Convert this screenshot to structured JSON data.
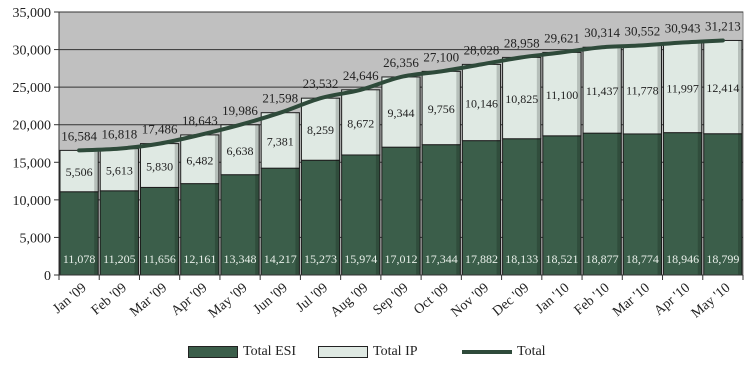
{
  "chart_data": {
    "type": "bar",
    "stacked": true,
    "categories": [
      "Jan '09",
      "Feb '09",
      "Mar '09",
      "Apr '09",
      "May '09",
      "Jun '09",
      "Jul '09",
      "Aug '09",
      "Sep '09",
      "Oct '09",
      "Nov '09",
      "Dec '09",
      "Jan '10",
      "Feb '10",
      "Mar '10",
      "Apr '10",
      "May '10"
    ],
    "series": [
      {
        "name": "Total ESI",
        "kind": "bar",
        "color": "#3b5e4a",
        "values": [
          11078,
          11205,
          11656,
          12161,
          13348,
          14217,
          15273,
          15974,
          17012,
          17344,
          17882,
          18133,
          18521,
          18877,
          18774,
          18946,
          18799
        ]
      },
      {
        "name": "Total IP",
        "kind": "bar",
        "color": "#dfe9e3",
        "values": [
          5506,
          5613,
          5830,
          6482,
          6638,
          7381,
          8259,
          8672,
          9344,
          9756,
          10146,
          10825,
          11100,
          11437,
          11778,
          11997,
          12414
        ]
      },
      {
        "name": "Total",
        "kind": "line",
        "color": "#2e4a3a",
        "values": [
          16584,
          16818,
          17486,
          18643,
          19986,
          21598,
          23532,
          24646,
          26356,
          27100,
          28028,
          28958,
          29621,
          30314,
          30552,
          30943,
          31213
        ]
      }
    ],
    "esi_labels": [
      "11,078",
      "11,205",
      "11,656",
      "12,161",
      "13,348",
      "14,217",
      "15,273",
      "15,974",
      "17,012",
      "17,344",
      "17,882",
      "18,133",
      "18,521",
      "18,877",
      "18,774",
      "18,946",
      "18,799"
    ],
    "ip_labels": [
      "5,506",
      "5,613",
      "5,830",
      "6,482",
      "6,638",
      "7,381",
      "8,259",
      "8,672",
      "9,344",
      "9,756",
      "10,146",
      "10,825",
      "11,100",
      "11,437",
      "11,778",
      "11,997",
      "12,414"
    ],
    "total_labels": [
      "16,584",
      "16,818",
      "17,486",
      "18,643",
      "19,986",
      "21,598",
      "23,532",
      "24,646",
      "26,356",
      "27,100",
      "28,028",
      "28,958",
      "29,621",
      "30,314",
      "30,552",
      "30,943",
      "31,213"
    ],
    "ylim": [
      0,
      35000
    ],
    "yticks": [
      0,
      5000,
      10000,
      15000,
      20000,
      25000,
      30000,
      35000
    ],
    "ytick_labels": [
      "0",
      "5,000",
      "10,000",
      "15,000",
      "20,000",
      "25,000",
      "30,000",
      "35,000"
    ],
    "grid": true,
    "legend": "bottom",
    "plot_background": "#c0c0c0"
  },
  "legend": {
    "esi_label": "Total ESI",
    "ip_label": "Total IP",
    "total_label": "Total"
  }
}
